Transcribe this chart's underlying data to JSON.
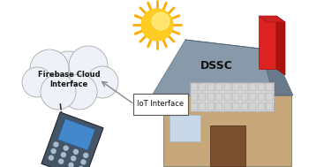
{
  "bg_color": "#ffffff",
  "cloud_text": "Firebase Cloud\nInterface",
  "cloud_color": "#eef2f8",
  "cloud_edge_color": "#aaaaaa",
  "iot_box_text": "IoT Interface",
  "dssc_text": "DSSC",
  "house_wall_color": "#c8a87a",
  "house_roof_color": "#8899aa",
  "house_roof_side_color": "#6a7a8a",
  "house_door_color": "#7a4f2d",
  "house_window_color": "#c8d8e8",
  "chimney_front_color": "#dd2222",
  "chimney_side_color": "#aa1111",
  "chimney_top_color": "#cc2222",
  "sun_ray_color": "#ffaa00",
  "sun_body_color": "#ffcc22",
  "sun_inner_color": "#ffee88",
  "panel_bg_color": "#e0e0e0",
  "panel_cell_color": "#cccccc",
  "panel_grid_color": "#999999"
}
